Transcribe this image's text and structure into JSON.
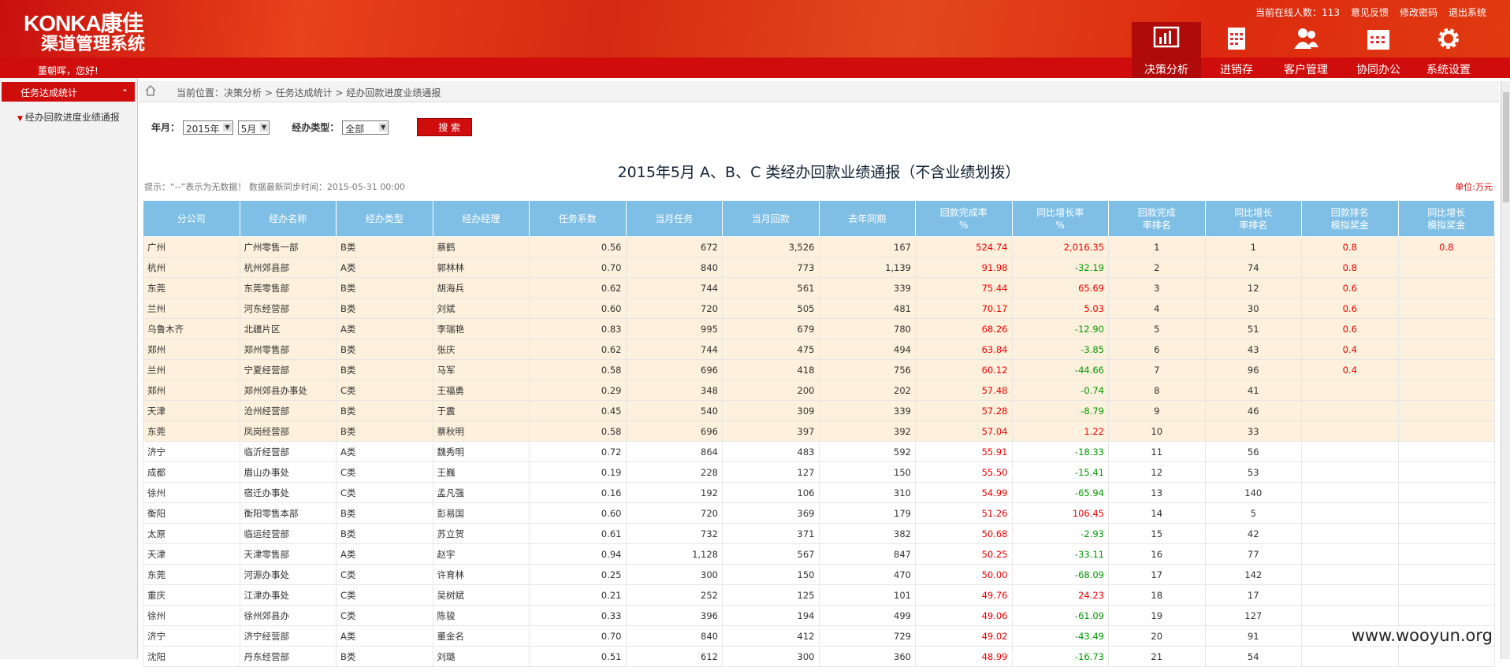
{
  "header": {
    "logo": "KONKA康佳",
    "system": "渠道管理系统",
    "greeting": "董朝晖，您好!",
    "links": [
      "当前在线人数：113",
      "意见反馈",
      "修改密码",
      "退出系统"
    ],
    "nav": [
      "决策分析",
      "进销存",
      "客户管理",
      "协同办公",
      "系统设置"
    ]
  },
  "sidebar": {
    "group": "任务达成统计",
    "toggle": "-",
    "item": "经办回款进度业绩通报"
  },
  "breadcrumb": "当前位置：决策分析 > 任务达成统计 > 经办回款进度业绩通报",
  "form": {
    "month_label": "年月：",
    "year": "2015年",
    "month": "5月",
    "type_label": "经办类型：",
    "type": "全部",
    "search": "搜 索"
  },
  "report": {
    "title": "2015年5月 A、B、C 类经办回款业绩通报（不含业绩划拨）",
    "hint": "提示：“--”表示为无数据！  数据最新同步时间：2015-05-31 00:00",
    "unit": "单位:万元"
  },
  "table": {
    "headers": [
      [
        "分公司"
      ],
      [
        "经办名称"
      ],
      [
        "经办类型"
      ],
      [
        "经办经理"
      ],
      [
        "任务系数"
      ],
      [
        "当月任务"
      ],
      [
        "当月回款"
      ],
      [
        "去年同期"
      ],
      [
        "回款完成率",
        "%"
      ],
      [
        "同比增长率",
        "%"
      ],
      [
        "回款完成",
        "率排名"
      ],
      [
        "同比增长",
        "率排名"
      ],
      [
        "回款排名",
        "模拟奖金"
      ],
      [
        "同比增长",
        "模拟奖金"
      ]
    ],
    "rows": [
      [
        "广州",
        "广州零售一部",
        "B类",
        "蔡鹤",
        "0.56",
        "672",
        "3,526",
        "167",
        "524.74",
        "2,016.35",
        "1",
        "1",
        "0.8",
        "0.8"
      ],
      [
        "杭州",
        "杭州郊县部",
        "A类",
        "郭林林",
        "0.70",
        "840",
        "773",
        "1,139",
        "91.98",
        "-32.19",
        "2",
        "74",
        "0.8"
      ],
      [
        "东莞",
        "东莞零售部",
        "B类",
        "胡海兵",
        "0.62",
        "744",
        "561",
        "339",
        "75.44",
        "65.69",
        "3",
        "12",
        "0.6"
      ],
      [
        "兰州",
        "河东经营部",
        "B类",
        "刘斌",
        "0.60",
        "720",
        "505",
        "481",
        "70.17",
        "5.03",
        "4",
        "30",
        "0.6"
      ],
      [
        "乌鲁木齐",
        "北疆片区",
        "A类",
        "李瑞艳",
        "0.83",
        "995",
        "679",
        "780",
        "68.26",
        "-12.90",
        "5",
        "51",
        "0.6"
      ],
      [
        "郑州",
        "郑州零售部",
        "B类",
        "张庆",
        "0.62",
        "744",
        "475",
        "494",
        "63.84",
        "-3.85",
        "6",
        "43",
        "0.4"
      ],
      [
        "兰州",
        "宁夏经营部",
        "B类",
        "马军",
        "0.58",
        "696",
        "418",
        "756",
        "60.12",
        "-44.66",
        "7",
        "96",
        "0.4"
      ],
      [
        "郑州",
        "郑州郊县办事处",
        "C类",
        "王福勇",
        "0.29",
        "348",
        "200",
        "202",
        "57.48",
        "-0.74",
        "8",
        "41"
      ],
      [
        "天津",
        "沧州经营部",
        "B类",
        "于震",
        "0.45",
        "540",
        "309",
        "339",
        "57.28",
        "-8.79",
        "9",
        "46"
      ],
      [
        "东莞",
        "凤岗经营部",
        "B类",
        "蔡秋明",
        "0.58",
        "696",
        "397",
        "392",
        "57.04",
        "1.22",
        "10",
        "33"
      ],
      [
        "济宁",
        "临沂经营部",
        "A类",
        "魏秀明",
        "0.72",
        "864",
        "483",
        "592",
        "55.91",
        "-18.33",
        "11",
        "56"
      ],
      [
        "成都",
        "眉山办事处",
        "C类",
        "王巍",
        "0.19",
        "228",
        "127",
        "150",
        "55.50",
        "-15.41",
        "12",
        "53"
      ],
      [
        "徐州",
        "宿迁办事处",
        "C类",
        "孟凡强",
        "0.16",
        "192",
        "106",
        "310",
        "54.99",
        "-65.94",
        "13",
        "140"
      ],
      [
        "衡阳",
        "衡阳零售本部",
        "B类",
        "彭易国",
        "0.60",
        "720",
        "369",
        "179",
        "51.26",
        "106.45",
        "14",
        "5"
      ],
      [
        "太原",
        "临运经营部",
        "B类",
        "苏立贺",
        "0.61",
        "732",
        "371",
        "382",
        "50.68",
        "-2.93",
        "15",
        "42"
      ],
      [
        "天津",
        "天津零售部",
        "A类",
        "赵宇",
        "0.94",
        "1,128",
        "567",
        "847",
        "50.25",
        "-33.11",
        "16",
        "77"
      ],
      [
        "东莞",
        "河源办事处",
        "C类",
        "许育林",
        "0.25",
        "300",
        "150",
        "470",
        "50.00",
        "-68.09",
        "17",
        "142"
      ],
      [
        "重庆",
        "江津办事处",
        "C类",
        "吴树斌",
        "0.21",
        "252",
        "125",
        "101",
        "49.76",
        "24.23",
        "18",
        "17"
      ],
      [
        "徐州",
        "徐州郊县办",
        "C类",
        "陈骏",
        "0.33",
        "396",
        "194",
        "499",
        "49.06",
        "-61.09",
        "19",
        "127"
      ],
      [
        "济宁",
        "济宁经营部",
        "A类",
        "董金名",
        "0.70",
        "840",
        "412",
        "729",
        "49.02",
        "-43.49",
        "20",
        "91"
      ],
      [
        "沈阳",
        "丹东经营部",
        "B类",
        "刘璐",
        "0.51",
        "612",
        "300",
        "360",
        "48.99",
        "-16.73",
        "21",
        "54"
      ]
    ]
  },
  "watermark": "www.wooyun.org"
}
